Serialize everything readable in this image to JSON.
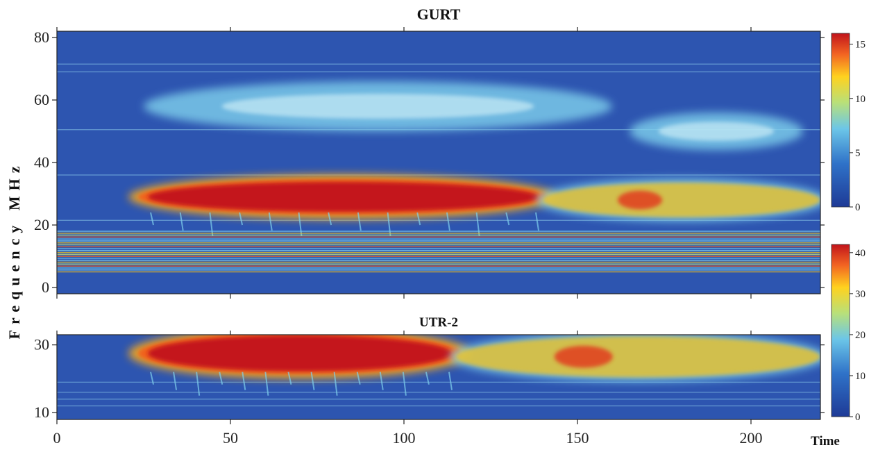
{
  "chart_data": [
    {
      "type": "heatmap",
      "title": "GURT",
      "ylabel": "Frequency MHz",
      "xlabel": "Time",
      "xlim": [
        0,
        220
      ],
      "ylim": [
        -2,
        82
      ],
      "x_ticks": [
        "0",
        "50",
        "100",
        "150",
        "200"
      ],
      "y_ticks": [
        "0",
        "20",
        "40",
        "60",
        "80"
      ],
      "colorbar": {
        "min": 0,
        "max": 16,
        "ticks": [
          "0",
          "5",
          "10",
          "15"
        ]
      },
      "features": [
        {
          "name": "intense burst",
          "time": [
            25,
            140
          ],
          "freq_mhz": [
            24,
            34
          ],
          "level": "high"
        },
        {
          "name": "moderate emission",
          "time": [
            140,
            220
          ],
          "freq_mhz": [
            22,
            34
          ],
          "level": "medium"
        },
        {
          "name": "diffuse emission",
          "time": [
            25,
            160
          ],
          "freq_mhz": [
            50,
            66
          ],
          "level": "low"
        },
        {
          "name": "diffuse emission",
          "time": [
            165,
            215
          ],
          "freq_mhz": [
            44,
            56
          ],
          "level": "low"
        },
        {
          "name": "interference band",
          "time": [
            0,
            220
          ],
          "freq_mhz": [
            5,
            18
          ],
          "level": "medium"
        }
      ]
    },
    {
      "type": "heatmap",
      "title": "UTR-2",
      "ylabel": "Frequency MHz",
      "xlabel": "Time",
      "xlim": [
        0,
        220
      ],
      "ylim": [
        8,
        33
      ],
      "x_ticks": [
        "0",
        "50",
        "100",
        "150",
        "200"
      ],
      "y_ticks": [
        "10",
        "30"
      ],
      "colorbar": {
        "min": 0,
        "max": 42,
        "ticks": [
          "0",
          "10",
          "20",
          "30",
          "40"
        ]
      },
      "features": [
        {
          "name": "intense burst",
          "time": [
            25,
            115
          ],
          "freq_mhz": [
            22,
            33
          ],
          "level": "high"
        },
        {
          "name": "moderate emission",
          "time": [
            115,
            220
          ],
          "freq_mhz": [
            20,
            33
          ],
          "level": "medium"
        }
      ]
    }
  ]
}
